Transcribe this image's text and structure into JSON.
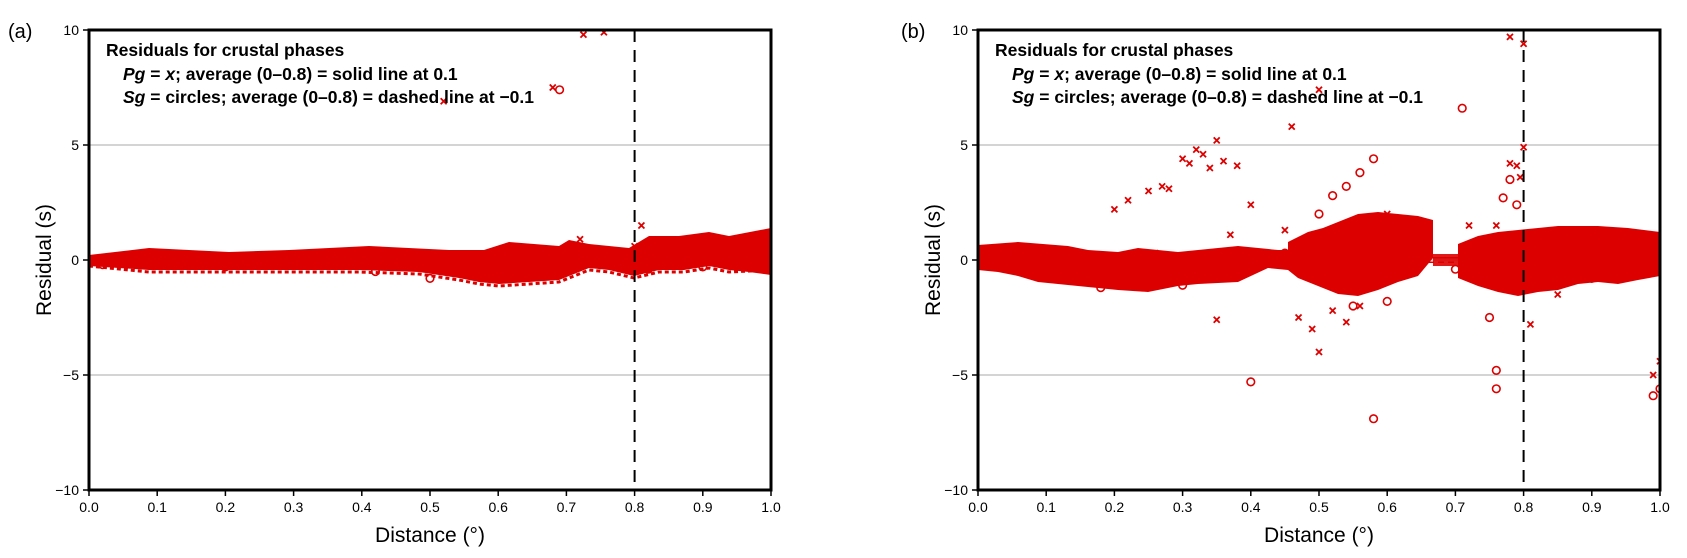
{
  "colors": {
    "data": "#dd0000",
    "frame": "#000000",
    "grid": "#aaaaaa",
    "background": "#ffffff"
  },
  "chart_data": [
    {
      "type": "scatter",
      "panel_label": "(a)",
      "xlabel": "Distance (°)",
      "ylabel": "Residual (s)",
      "xlim": [
        0.0,
        1.0
      ],
      "ylim": [
        -10,
        10
      ],
      "xticks": [
        "0.0",
        "0.1",
        "0.2",
        "0.3",
        "0.4",
        "0.5",
        "0.6",
        "0.7",
        "0.8",
        "0.9",
        "1.0"
      ],
      "yticks": [
        "10",
        "5",
        "0",
        "−5",
        "−10"
      ],
      "grid": "horizontal at 5, 0, −5",
      "reference_line_x": 0.8,
      "legend_lines": {
        "title": "Residuals for crustal phases",
        "pg_name": "Pg",
        "pg_symbol": "x",
        "pg_text": "; average (0–0.8) = solid line at ",
        "pg_avg": "0.1",
        "sg_name": "Sg",
        "sg_text": " = circles; average (0–0.8) = dashed line at ",
        "sg_avg": "−0.1"
      },
      "averages": {
        "pg": 0.1,
        "sg": -0.1
      },
      "series": [
        {
          "name": "Pg",
          "marker": "x",
          "points": [
            [
              0.02,
              0.1
            ],
            [
              0.1,
              0.2
            ],
            [
              0.2,
              0.1
            ],
            [
              0.3,
              0.2
            ],
            [
              0.45,
              -0.2
            ],
            [
              0.55,
              -0.3
            ],
            [
              0.65,
              0.2
            ],
            [
              0.68,
              7.5
            ],
            [
              0.72,
              0.9
            ],
            [
              0.725,
              9.8
            ],
            [
              0.755,
              9.9
            ],
            [
              0.8,
              0.6
            ],
            [
              0.81,
              1.5
            ],
            [
              0.9,
              0.4
            ],
            [
              0.98,
              0.8
            ],
            [
              0.52,
              6.9
            ]
          ]
        },
        {
          "name": "Sg",
          "marker": "circle",
          "points": [
            [
              0.02,
              -0.2
            ],
            [
              0.1,
              -0.2
            ],
            [
              0.2,
              -0.3
            ],
            [
              0.3,
              -0.2
            ],
            [
              0.42,
              -0.5
            ],
            [
              0.5,
              -0.8
            ],
            [
              0.6,
              -0.5
            ],
            [
              0.68,
              0.3
            ],
            [
              0.69,
              7.4
            ],
            [
              0.75,
              -0.2
            ],
            [
              0.82,
              -0.4
            ],
            [
              0.9,
              -0.3
            ],
            [
              0.98,
              0.2
            ]
          ]
        }
      ]
    },
    {
      "type": "scatter",
      "panel_label": "(b)",
      "xlabel": "Distance (°)",
      "ylabel": "Residual (s)",
      "xlim": [
        0.0,
        1.0
      ],
      "ylim": [
        -10,
        10
      ],
      "xticks": [
        "0.0",
        "0.1",
        "0.2",
        "0.3",
        "0.4",
        "0.5",
        "0.6",
        "0.7",
        "0.8",
        "0.9",
        "1.0"
      ],
      "yticks": [
        "10",
        "5",
        "0",
        "−5",
        "−10"
      ],
      "grid": "horizontal at 5, 0, −5",
      "reference_line_x": 0.8,
      "legend_lines": {
        "title": "Residuals for crustal phases",
        "pg_name": "Pg",
        "pg_symbol": "x",
        "pg_text": "; average (0–0.8) = solid line at ",
        "pg_avg": "0.1",
        "sg_name": "Sg",
        "sg_text": " = circles; average (0–0.8) = dashed line at ",
        "sg_avg": "−0.1"
      },
      "averages": {
        "pg": 0.1,
        "sg": -0.1
      },
      "series": [
        {
          "name": "Pg",
          "marker": "x",
          "points": [
            [
              0.2,
              2.2
            ],
            [
              0.22,
              2.6
            ],
            [
              0.25,
              3.0
            ],
            [
              0.27,
              3.2
            ],
            [
              0.28,
              3.1
            ],
            [
              0.3,
              4.4
            ],
            [
              0.31,
              4.2
            ],
            [
              0.32,
              4.8
            ],
            [
              0.33,
              4.6
            ],
            [
              0.34,
              4.0
            ],
            [
              0.35,
              5.2
            ],
            [
              0.36,
              4.3
            ],
            [
              0.38,
              4.1
            ],
            [
              0.4,
              2.4
            ],
            [
              0.37,
              1.1
            ],
            [
              0.45,
              1.3
            ],
            [
              0.46,
              5.8
            ],
            [
              0.5,
              7.4
            ],
            [
              0.47,
              -2.5
            ],
            [
              0.49,
              -3.0
            ],
            [
              0.5,
              -4.0
            ],
            [
              0.52,
              -2.2
            ],
            [
              0.54,
              -2.7
            ],
            [
              0.56,
              -2.0
            ],
            [
              0.6,
              2.0
            ],
            [
              0.78,
              4.2
            ],
            [
              0.79,
              4.1
            ],
            [
              0.795,
              3.6
            ],
            [
              0.8,
              4.9
            ],
            [
              0.8,
              9.4
            ],
            [
              0.78,
              9.7
            ],
            [
              0.76,
              1.5
            ],
            [
              0.81,
              -2.8
            ],
            [
              0.85,
              -1.5
            ],
            [
              0.9,
              1.2
            ],
            [
              0.95,
              1.0
            ],
            [
              0.99,
              -5.0
            ],
            [
              1.0,
              -4.4
            ],
            [
              0.26,
              0.3
            ],
            [
              0.15,
              -0.4
            ],
            [
              0.35,
              -2.6
            ],
            [
              0.72,
              1.5
            ]
          ]
        },
        {
          "name": "Sg",
          "marker": "circle",
          "points": [
            [
              0.02,
              0.3
            ],
            [
              0.1,
              0.2
            ],
            [
              0.18,
              -1.2
            ],
            [
              0.25,
              -0.8
            ],
            [
              0.3,
              -1.1
            ],
            [
              0.4,
              -5.3
            ],
            [
              0.45,
              0.3
            ],
            [
              0.5,
              2.0
            ],
            [
              0.52,
              2.8
            ],
            [
              0.54,
              3.2
            ],
            [
              0.56,
              3.8
            ],
            [
              0.58,
              4.4
            ],
            [
              0.55,
              -2.0
            ],
            [
              0.58,
              -6.9
            ],
            [
              0.6,
              -1.8
            ],
            [
              0.7,
              -0.4
            ],
            [
              0.71,
              6.6
            ],
            [
              0.75,
              -2.5
            ],
            [
              0.76,
              -4.8
            ],
            [
              0.76,
              -5.6
            ],
            [
              0.77,
              2.7
            ],
            [
              0.78,
              3.5
            ],
            [
              0.79,
              2.4
            ],
            [
              0.8,
              -0.9
            ],
            [
              0.85,
              -1.0
            ],
            [
              0.9,
              -0.8
            ],
            [
              0.95,
              -0.6
            ],
            [
              0.99,
              -5.9
            ],
            [
              1.0,
              -5.6
            ],
            [
              0.72,
              0.5
            ]
          ]
        }
      ]
    }
  ]
}
